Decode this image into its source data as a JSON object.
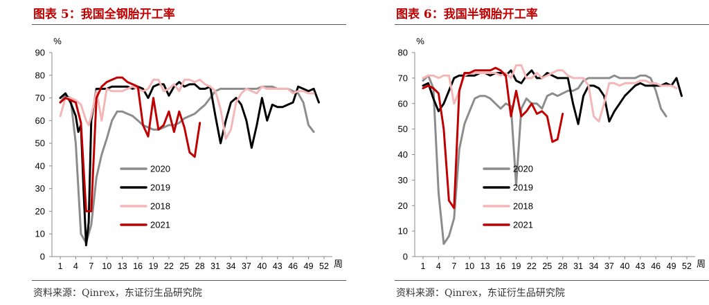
{
  "chart_data": [
    {
      "type": "line",
      "title": "图表 5：我国全钢胎开工率",
      "unit_label": "%",
      "x_unit_label": "周",
      "source": "资料来源：Qinrex，东证衍生品研究院",
      "xlim": [
        1,
        52
      ],
      "ylim": [
        0,
        90
      ],
      "x_ticks": [
        1,
        4,
        7,
        10,
        13,
        16,
        19,
        22,
        25,
        28,
        31,
        34,
        37,
        40,
        43,
        46,
        49,
        52
      ],
      "y_ticks": [
        0,
        10,
        20,
        30,
        40,
        50,
        60,
        70,
        80,
        90
      ],
      "legend": [
        "2020",
        "2019",
        "2018",
        "2021"
      ],
      "series": [
        {
          "name": "2020",
          "color": "#8c8c8c",
          "width": 3,
          "x": [
            1,
            2,
            3,
            4,
            5,
            6,
            7,
            8,
            9,
            10,
            11,
            12,
            13,
            14,
            15,
            16,
            17,
            18,
            19,
            20,
            21,
            22,
            23,
            24,
            25,
            26,
            27,
            28,
            29,
            30,
            31,
            32,
            33,
            34,
            35,
            36,
            37,
            38,
            39,
            40,
            41,
            42,
            43,
            44,
            45,
            46,
            47,
            48,
            49,
            50
          ],
          "y": [
            68,
            71,
            70,
            50,
            10,
            6,
            14,
            35,
            45,
            52,
            60,
            64,
            64,
            63,
            62,
            60,
            58,
            57,
            56,
            56,
            57,
            58,
            58,
            59,
            61,
            62,
            63,
            65,
            67,
            70,
            73,
            74,
            74,
            74,
            74,
            74,
            74,
            74,
            74,
            75,
            75,
            75,
            74,
            74,
            74,
            73,
            72,
            68,
            58,
            55
          ]
        },
        {
          "name": "2019",
          "color": "#000000",
          "width": 3,
          "x": [
            1,
            2,
            3,
            4,
            4.5,
            5,
            5.5,
            6,
            6.5,
            7,
            8,
            9,
            10,
            11,
            12,
            13,
            14,
            15,
            16,
            17,
            18,
            19,
            20,
            21,
            22,
            23,
            24,
            25,
            26,
            27,
            28,
            29,
            30,
            31,
            32,
            33,
            34,
            35,
            36,
            37,
            38,
            39,
            40,
            41,
            42,
            43,
            44,
            45,
            46,
            47,
            48,
            49,
            50,
            51
          ],
          "y": [
            70,
            72,
            68,
            62,
            55,
            58,
            30,
            5,
            15,
            60,
            74,
            74,
            74,
            75,
            75,
            75,
            75,
            74,
            75,
            74,
            70,
            75,
            76,
            76,
            71,
            75,
            77,
            75,
            76,
            76,
            74,
            74,
            75,
            62,
            50,
            60,
            68,
            70,
            67,
            60,
            48,
            58,
            70,
            60,
            67,
            66,
            66,
            67,
            68,
            75,
            74,
            73,
            74,
            68
          ]
        },
        {
          "name": "2018",
          "color": "#f4b6b6",
          "width": 3,
          "x": [
            1,
            2,
            3,
            4,
            5,
            6,
            6.5,
            7,
            8,
            9,
            10,
            11,
            12,
            13,
            14,
            15,
            16,
            17,
            18,
            19,
            20,
            21,
            22,
            23,
            24,
            25,
            26,
            27,
            28,
            29,
            30,
            31,
            32,
            33,
            34,
            35,
            36,
            37,
            38,
            39,
            40,
            41,
            42,
            43,
            44,
            45,
            46,
            47,
            48,
            49,
            50
          ],
          "y": [
            62,
            70,
            70,
            69,
            67,
            60,
            58,
            62,
            73,
            60,
            74,
            73,
            73,
            73,
            74,
            75,
            74,
            73,
            74,
            78,
            78,
            73,
            74,
            76,
            73,
            78,
            78,
            77,
            78,
            76,
            75,
            73,
            65,
            52,
            56,
            68,
            72,
            74,
            73,
            72,
            75,
            74,
            74,
            74,
            74,
            74,
            72,
            73,
            73,
            72,
            72
          ]
        },
        {
          "name": "2021",
          "color": "#c00000",
          "width": 3,
          "x": [
            1,
            2,
            3,
            4,
            5,
            6,
            7,
            8,
            9,
            10,
            11,
            12,
            13,
            14,
            15,
            16,
            17,
            18,
            19,
            20,
            21,
            22,
            23,
            24,
            25,
            26,
            27,
            28
          ],
          "y": [
            68,
            70,
            69,
            68,
            59,
            20,
            20,
            70,
            75,
            77,
            78,
            79,
            79,
            77,
            76,
            75,
            58,
            53,
            70,
            56,
            58,
            64,
            55,
            64,
            57,
            46,
            44,
            59
          ]
        }
      ]
    },
    {
      "type": "line",
      "title": "图表 6：我国半钢胎开工率",
      "unit_label": "%",
      "x_unit_label": "周",
      "source": "资料来源：Qinrex，东证衍生品研究院",
      "xlim": [
        1,
        52
      ],
      "ylim": [
        0,
        80
      ],
      "x_ticks": [
        1,
        4,
        7,
        10,
        13,
        16,
        19,
        22,
        25,
        28,
        31,
        34,
        37,
        40,
        43,
        46,
        49,
        52
      ],
      "y_ticks": [
        0,
        10,
        20,
        30,
        40,
        50,
        60,
        70,
        80
      ],
      "legend": [
        "2020",
        "2019",
        "2018",
        "2021"
      ],
      "series": [
        {
          "name": "2020",
          "color": "#8c8c8c",
          "width": 3,
          "x": [
            1,
            2,
            3,
            4,
            5,
            6,
            7,
            8,
            9,
            10,
            11,
            12,
            13,
            14,
            15,
            16,
            17,
            18,
            19,
            20,
            21,
            22,
            23,
            24,
            25,
            26,
            27,
            28,
            29,
            30,
            31,
            32,
            33,
            34,
            35,
            36,
            37,
            38,
            39,
            40,
            41,
            42,
            43,
            44,
            45,
            46,
            47,
            48
          ],
          "y": [
            69,
            71,
            66,
            25,
            5,
            8,
            15,
            42,
            52,
            57,
            62,
            63,
            63,
            62,
            60,
            58,
            60,
            59,
            28,
            58,
            62,
            60,
            60,
            58,
            63,
            64,
            63,
            64,
            65,
            65,
            66,
            69,
            70,
            70,
            70,
            70,
            70,
            71,
            70,
            70,
            70,
            70,
            71,
            71,
            70,
            65,
            58,
            55
          ]
        },
        {
          "name": "2019",
          "color": "#000000",
          "width": 3,
          "x": [
            1,
            2,
            3,
            4,
            5,
            6,
            7,
            8,
            9,
            10,
            11,
            12,
            13,
            14,
            15,
            16,
            17,
            18,
            19,
            20,
            21,
            22,
            23,
            24,
            25,
            26,
            27,
            28,
            29,
            30,
            31,
            32,
            33,
            34,
            35,
            36,
            37,
            38,
            39,
            40,
            41,
            42,
            43,
            44,
            45,
            46,
            47,
            48,
            49,
            50,
            51
          ],
          "y": [
            67,
            68,
            62,
            57,
            60,
            65,
            70,
            71,
            71,
            71,
            71,
            72,
            72,
            71,
            72,
            72,
            71,
            73,
            69,
            68,
            71,
            73,
            70,
            70,
            72,
            71,
            70,
            70,
            70,
            60,
            52,
            63,
            67,
            67,
            66,
            63,
            53,
            57,
            60,
            63,
            65,
            67,
            68,
            67,
            67,
            67,
            67,
            68,
            67,
            70,
            63
          ]
        },
        {
          "name": "2018",
          "color": "#f4b6b6",
          "width": 3,
          "x": [
            1,
            2,
            3,
            4,
            5,
            6,
            7,
            8,
            9,
            10,
            11,
            12,
            13,
            14,
            15,
            16,
            17,
            18,
            19,
            20,
            21,
            22,
            23,
            24,
            25,
            26,
            27,
            28,
            29,
            30,
            31,
            32,
            33,
            34,
            35,
            36,
            37,
            38,
            39,
            40,
            41,
            42,
            43,
            44,
            45,
            46,
            47,
            48,
            49,
            50
          ],
          "y": [
            70,
            71,
            71,
            70,
            71,
            71,
            60,
            65,
            71,
            72,
            72,
            72,
            72,
            72,
            72,
            71,
            72,
            70,
            75,
            75,
            70,
            70,
            72,
            70,
            71,
            72,
            73,
            73,
            71,
            70,
            70,
            70,
            67,
            55,
            53,
            60,
            68,
            68,
            67,
            68,
            68,
            68,
            69,
            69,
            68,
            68,
            67,
            67,
            67,
            66
          ]
        },
        {
          "name": "2021",
          "color": "#c00000",
          "width": 3,
          "x": [
            1,
            2,
            3,
            4,
            5,
            6,
            7,
            8,
            9,
            10,
            11,
            12,
            13,
            14,
            15,
            16,
            17,
            18,
            19,
            20,
            21,
            22,
            23,
            24,
            25,
            26,
            27,
            28
          ],
          "y": [
            66,
            67,
            66,
            64,
            50,
            22,
            19,
            65,
            72,
            72,
            73,
            73,
            73,
            73,
            74,
            73,
            71,
            55,
            65,
            55,
            57,
            60,
            56,
            57,
            55,
            45,
            46,
            56
          ]
        }
      ]
    }
  ]
}
